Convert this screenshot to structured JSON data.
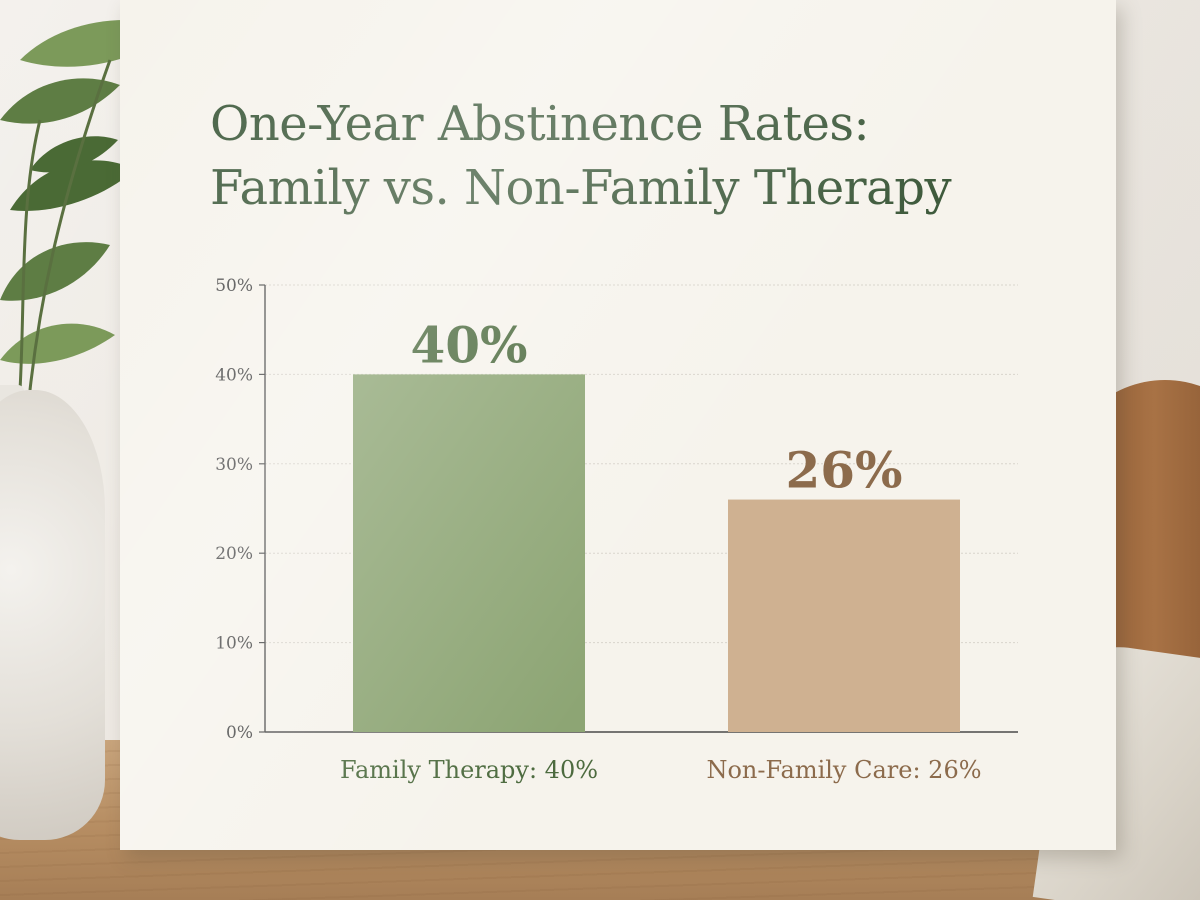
{
  "title_lines": [
    "One-Year Abstinence Rates:",
    "Family vs. Non-Family Therapy"
  ],
  "colors": {
    "title": "#3e5a3c",
    "family_bar": "#8da574",
    "nonfamily_bar": "#cfb191",
    "family_label": "#4d6b3f",
    "nonfamily_label": "#8c6b4c",
    "axis": "#4a4a4a",
    "grid": "#d8d4cb"
  },
  "chart_data": {
    "type": "bar",
    "title": "One-Year Abstinence Rates: Family vs. Non-Family Therapy",
    "categories": [
      "Family Therapy: 40%",
      "Non-Family Care: 26%"
    ],
    "values": [
      40,
      26
    ],
    "data_labels": [
      "40%",
      "26%"
    ],
    "y_ticks": [
      "0%",
      "10%",
      "20%",
      "30%",
      "40%",
      "50%"
    ],
    "y_tick_values": [
      0,
      10,
      20,
      30,
      40,
      50
    ],
    "ylim": [
      0,
      50
    ],
    "xlabel": "",
    "ylabel": "",
    "grid": true,
    "legend": "none"
  }
}
